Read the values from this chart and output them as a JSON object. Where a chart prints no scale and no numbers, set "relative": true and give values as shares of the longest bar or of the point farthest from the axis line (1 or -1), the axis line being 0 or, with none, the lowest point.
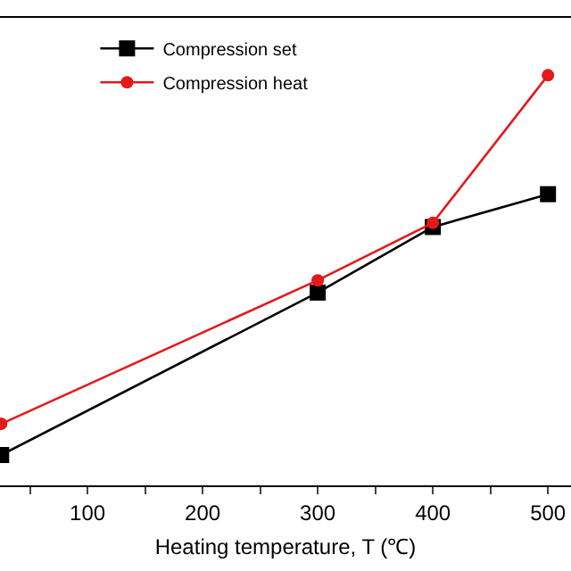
{
  "chart_data": {
    "type": "line",
    "xlabel": "Heating temperature, T (℃)",
    "relative": true,
    "x": [
      25,
      300,
      400,
      500
    ],
    "xlim": [
      24,
      520
    ],
    "xticks": [
      {
        "value": 50,
        "label": null
      },
      100,
      {
        "value": 150,
        "label": null
      },
      200,
      {
        "value": 250,
        "label": null
      },
      300,
      {
        "value": 350,
        "label": null
      },
      400,
      {
        "value": 450,
        "label": null
      },
      500
    ],
    "series": [
      {
        "name": "Compression set",
        "color": "#000000",
        "marker": "square",
        "values": [
          0.074,
          0.47,
          0.63,
          0.71
        ]
      },
      {
        "name": "Compression heat",
        "color": "#e31a1c",
        "marker": "circle",
        "values": [
          0.15,
          0.5,
          0.64,
          1
        ]
      }
    ],
    "grid": false,
    "legend": "top left",
    "tick_labels": "x",
    "line_style": "solid"
  }
}
